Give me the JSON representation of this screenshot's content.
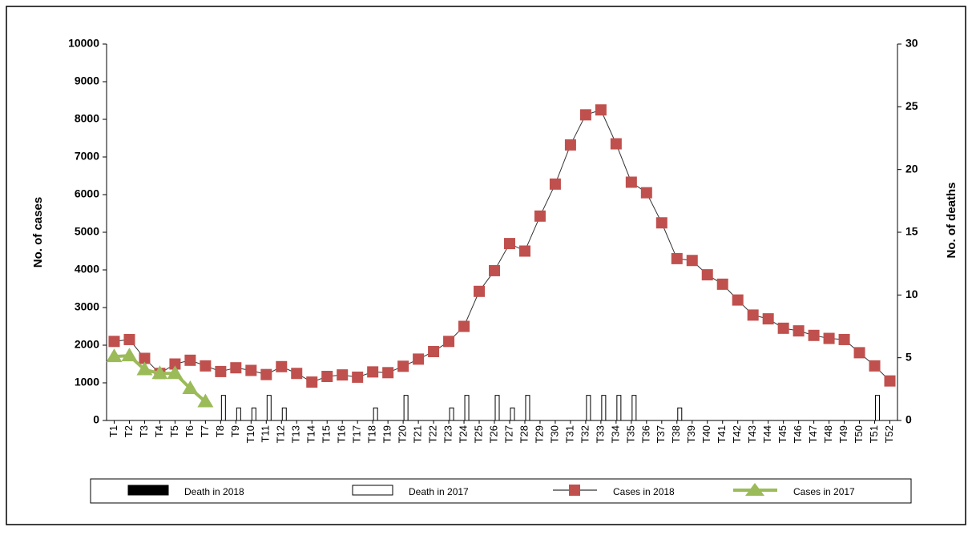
{
  "chart_data": {
    "type": "combo",
    "categories": [
      "T1",
      "T2",
      "T3",
      "T4",
      "T5",
      "T6",
      "T7",
      "T8",
      "T9",
      "T10",
      "T11",
      "T12",
      "T13",
      "T14",
      "T15",
      "T16",
      "T17",
      "T18",
      "T19",
      "T20",
      "T21",
      "T22",
      "T23",
      "T24",
      "T25",
      "T26",
      "T27",
      "T28",
      "T29",
      "T30",
      "T31",
      "T32",
      "T33",
      "T34",
      "T35",
      "T36",
      "T37",
      "T38",
      "T39",
      "T40",
      "T41",
      "T42",
      "T43",
      "T44",
      "T45",
      "T46",
      "T47",
      "T48",
      "T49",
      "T50",
      "T51",
      "T52"
    ],
    "ylabel": "No. of cases",
    "y2label": "No. of deaths",
    "ylim": [
      0,
      10000
    ],
    "yticks": [
      0,
      1000,
      2000,
      3000,
      4000,
      5000,
      6000,
      7000,
      8000,
      9000,
      10000
    ],
    "y2lim": [
      0,
      30
    ],
    "y2ticks": [
      0,
      5,
      10,
      15,
      20,
      25,
      30
    ],
    "legend": "bottom",
    "series": [
      {
        "name": "Death in 2018",
        "type": "bar",
        "axis": "y2",
        "color": "#000000",
        "values": [
          0,
          0,
          0,
          0,
          0,
          0,
          0,
          0,
          0,
          0,
          0,
          0,
          0,
          0,
          0,
          0,
          0,
          0,
          0,
          0,
          0,
          0,
          0,
          0,
          0,
          0,
          0,
          0,
          0,
          0,
          0,
          0,
          0,
          0,
          0,
          0,
          0,
          0,
          0,
          0,
          0,
          0,
          0,
          0,
          0,
          0,
          0,
          0,
          0,
          0,
          0,
          0
        ]
      },
      {
        "name": "Death in 2017",
        "type": "bar",
        "axis": "y2",
        "color": "#ffffff",
        "values": [
          0,
          0,
          0,
          0,
          0,
          0,
          0,
          2,
          1,
          1,
          2,
          1,
          0,
          0,
          0,
          0,
          0,
          1,
          0,
          2,
          0,
          0,
          1,
          2,
          0,
          2,
          1,
          2,
          0,
          0,
          0,
          2,
          2,
          2,
          2,
          0,
          0,
          1,
          0,
          0,
          0,
          0,
          0,
          0,
          0,
          0,
          0,
          0,
          0,
          0,
          2,
          0
        ]
      },
      {
        "name": "Cases in 2018",
        "type": "line",
        "marker": "square",
        "color": "#c0504d",
        "values": [
          2100,
          2150,
          1650,
          1250,
          1500,
          1600,
          1450,
          1300,
          1400,
          1330,
          1220,
          1430,
          1250,
          1020,
          1170,
          1210,
          1150,
          1290,
          1270,
          1440,
          1630,
          1830,
          2100,
          2500,
          3430,
          3980,
          4700,
          4500,
          5430,
          6280,
          7320,
          8120,
          8250,
          7350,
          6330,
          6050,
          5250,
          4300,
          4250,
          3870,
          3620,
          3200,
          2800,
          2700,
          2450,
          2380,
          2260,
          2180,
          2150,
          1800,
          1450,
          1050
        ]
      },
      {
        "name": "Cases in 2017",
        "type": "line",
        "marker": "triangle",
        "color": "#9bbb59",
        "values": [
          1700,
          1720,
          1350,
          1250,
          1250,
          850,
          500,
          null,
          null,
          null,
          null,
          null,
          null,
          null,
          null,
          null,
          null,
          null,
          null,
          null,
          null,
          null,
          null,
          null,
          null,
          null,
          null,
          null,
          null,
          null,
          null,
          null,
          null,
          null,
          null,
          null,
          null,
          null,
          null,
          null,
          null,
          null,
          null,
          null,
          null,
          null,
          null,
          null,
          null,
          null,
          null,
          null
        ]
      }
    ]
  }
}
